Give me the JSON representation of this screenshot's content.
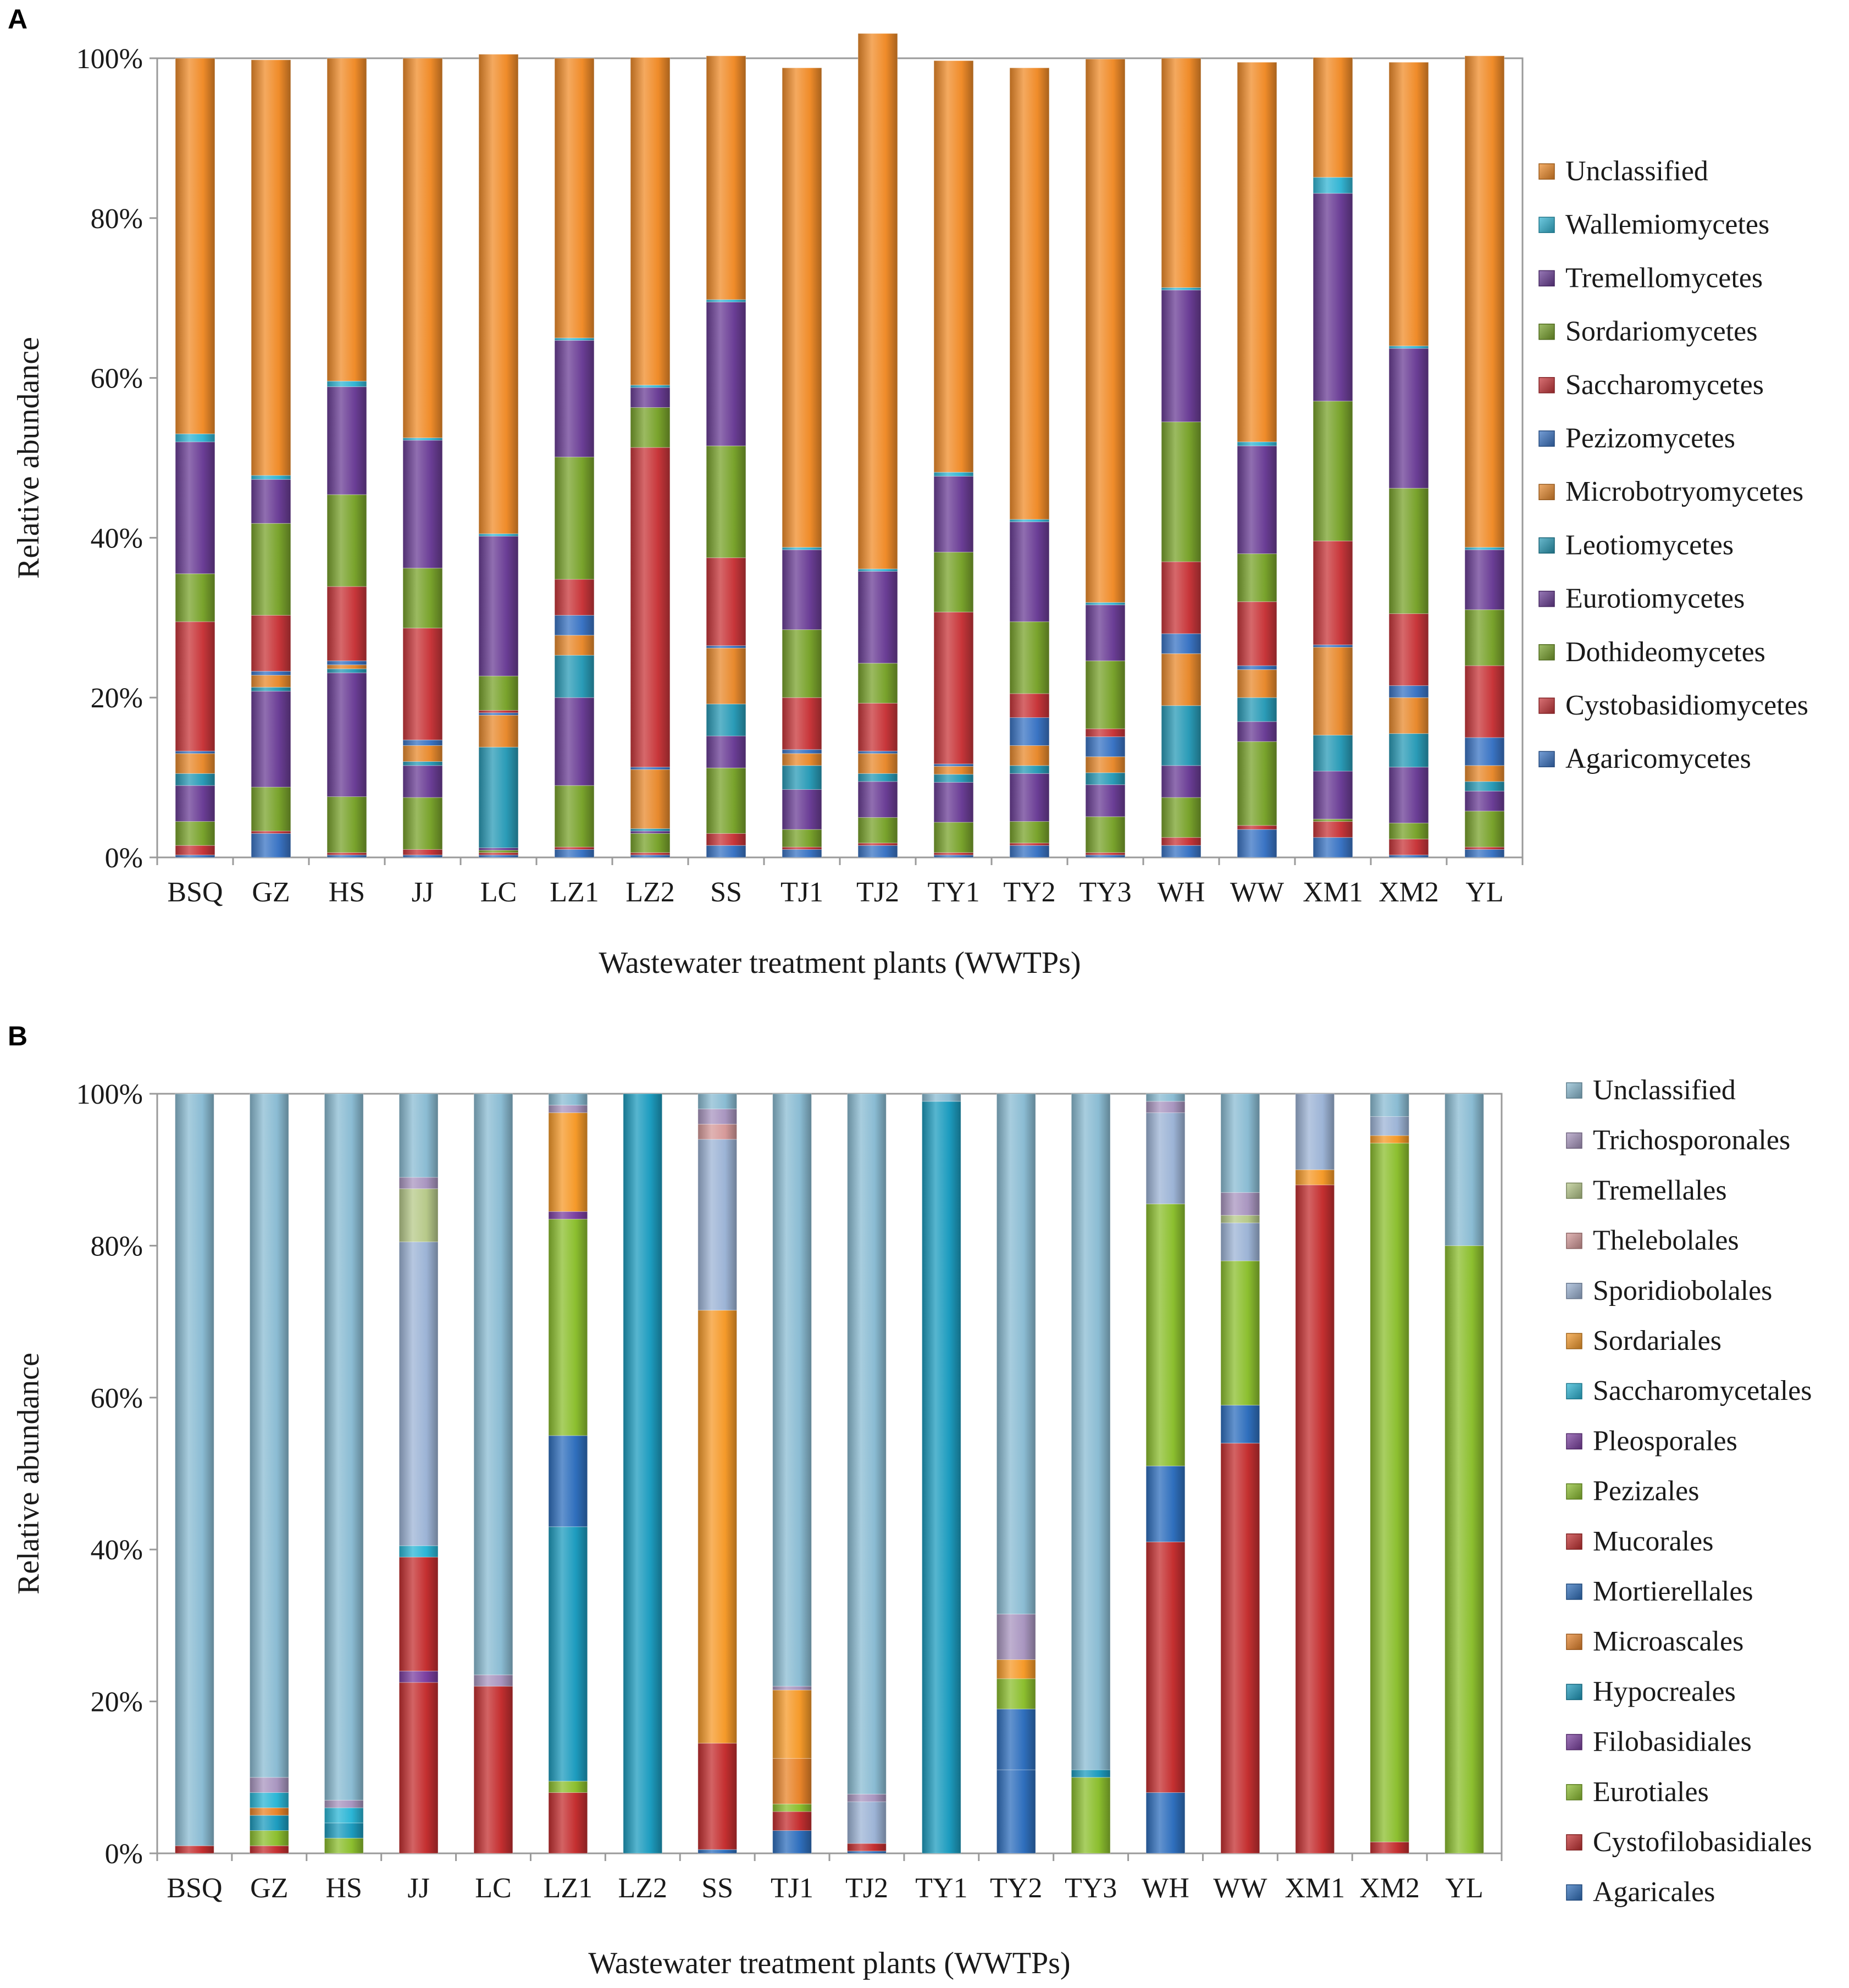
{
  "panel_letters": [
    "A",
    "B"
  ],
  "chart_data": [
    {
      "type": "bar",
      "stacked": true,
      "percent": true,
      "title": "",
      "xlabel": "Wastewater treatment plants (WWTPs)",
      "ylabel": "Relative abundance",
      "ylim": [
        0,
        100
      ],
      "yticks": [
        "0%",
        "20%",
        "40%",
        "60%",
        "80%",
        "100%"
      ],
      "categories": [
        "BSQ",
        "GZ",
        "HS",
        "JJ",
        "LC",
        "LZ1",
        "LZ2",
        "SS",
        "TJ1",
        "TJ2",
        "TY1",
        "TY2",
        "TY3",
        "WH",
        "WW",
        "XM1",
        "XM2",
        "YL"
      ],
      "series": [
        {
          "name": "Agaricomycetes",
          "color": "#3a74c4",
          "values": [
            0.3,
            3,
            0.3,
            0.3,
            0.3,
            1,
            0.3,
            1.5,
            1,
            1.5,
            0.3,
            1.5,
            0.3,
            1.5,
            3.5,
            2.5,
            0.3,
            1
          ]
        },
        {
          "name": "Cystobasidiomycetes",
          "color": "#c8363a",
          "values": [
            1.2,
            0.3,
            0.3,
            0.7,
            0.3,
            0.3,
            0.3,
            1.5,
            0.3,
            0.3,
            0.3,
            0.3,
            0.3,
            1,
            0.5,
            2,
            2,
            0.3
          ]
        },
        {
          "name": "Dothideomycetes",
          "color": "#79a32c",
          "values": [
            3,
            5.5,
            7,
            6.5,
            0.3,
            7.7,
            2.4,
            8.2,
            2.2,
            3.2,
            3.8,
            2.7,
            4.5,
            5,
            10.5,
            0.3,
            2,
            4.5
          ]
        },
        {
          "name": "Eurotiomycetes",
          "color": "#6b3e96",
          "values": [
            4.5,
            12,
            15.5,
            4,
            0.3,
            11,
            0.3,
            4,
            5,
            4.5,
            5,
            6,
            4,
            4,
            2.5,
            6,
            7,
            2.5
          ]
        },
        {
          "name": "Leotiomycetes",
          "color": "#2a9bb7",
          "values": [
            1.5,
            0.5,
            0.5,
            0.5,
            12.6,
            5.3,
            0.3,
            4,
            3,
            1,
            1,
            1,
            1.5,
            7.5,
            3,
            4.5,
            4.2,
            1.2
          ]
        },
        {
          "name": "Microbotryomycetes",
          "color": "#e88a2e",
          "values": [
            2.5,
            1.5,
            0.5,
            2,
            4,
            2.5,
            7.4,
            7,
            1.5,
            2.5,
            1,
            2.5,
            2,
            6.5,
            3.5,
            11,
            4.5,
            2
          ]
        },
        {
          "name": "Pezizomycetes",
          "color": "#3a74c4",
          "values": [
            0.3,
            0.5,
            0.5,
            0.7,
            0.3,
            2.5,
            0.3,
            0.3,
            0.5,
            0.3,
            0.3,
            3.5,
            2.5,
            2.5,
            0.5,
            0.3,
            1.5,
            3.5
          ]
        },
        {
          "name": "Saccharomycetes",
          "color": "#c8363a",
          "values": [
            16.2,
            7,
            9.3,
            14,
            0.3,
            4.5,
            40,
            11,
            6.5,
            6,
            19,
            3,
            1,
            9,
            8,
            13,
            9,
            9
          ]
        },
        {
          "name": "Sordariomycetes",
          "color": "#79a32c",
          "values": [
            6,
            11.5,
            11.5,
            7.5,
            4.3,
            15.3,
            5,
            14,
            8.5,
            5,
            7.5,
            9,
            8.5,
            17.5,
            6,
            17.5,
            15.7,
            7
          ]
        },
        {
          "name": "Tremellomycetes",
          "color": "#6b3e96",
          "values": [
            16.5,
            5.5,
            13.5,
            16,
            17.5,
            14.6,
            2.5,
            18,
            10,
            11.5,
            9.5,
            12.5,
            7,
            16.5,
            13.5,
            26,
            17.5,
            7.5
          ]
        },
        {
          "name": "Wallemiomycetes",
          "color": "#33b5d4",
          "values": [
            1,
            0.5,
            0.7,
            0.3,
            0.3,
            0.3,
            0.3,
            0.3,
            0.3,
            0.3,
            0.5,
            0.3,
            0.3,
            0.3,
            0.5,
            2,
            0.3,
            0.3
          ]
        },
        {
          "name": "Unclassified",
          "color": "#f08c2a",
          "values": [
            47,
            52,
            40.4,
            47.5,
            60,
            35,
            41,
            30.5,
            60,
            67,
            51.5,
            56.5,
            68,
            28.7,
            47.5,
            15,
            35.5,
            61.5
          ]
        }
      ]
    },
    {
      "type": "bar",
      "stacked": true,
      "percent": true,
      "title": "",
      "xlabel": "Wastewater treatment plants (WWTPs)",
      "ylabel": "Relative abundance",
      "ylim": [
        0,
        100
      ],
      "yticks": [
        "0%",
        "20%",
        "40%",
        "60%",
        "80%",
        "100%"
      ],
      "categories": [
        "BSQ",
        "GZ",
        "HS",
        "JJ",
        "LC",
        "LZ1",
        "LZ2",
        "SS",
        "TJ1",
        "TJ2",
        "TY1",
        "TY2",
        "TY3",
        "WH",
        "WW",
        "XM1",
        "XM2",
        "YL"
      ],
      "series": [
        {
          "name": "Agaricales",
          "color": "#2f6fbd",
          "values": [
            0,
            0,
            0,
            0,
            0,
            0,
            0,
            0.5,
            3,
            0.3,
            0,
            11,
            0,
            8,
            0,
            0,
            0,
            0
          ]
        },
        {
          "name": "Cystofilobasidiales",
          "color": "#c42f30",
          "values": [
            1,
            1,
            0,
            22.5,
            22,
            8,
            0,
            14,
            2.5,
            1,
            0,
            0,
            0,
            33,
            54,
            88,
            1.5,
            0
          ]
        },
        {
          "name": "Eurotiales",
          "color": "#8cbf2f",
          "values": [
            0,
            2,
            2,
            0,
            0,
            1.5,
            0,
            0,
            1,
            0,
            0,
            0,
            10,
            0,
            0,
            0,
            92,
            80
          ]
        },
        {
          "name": "Filobasidiales",
          "color": "#7b3fa0",
          "values": [
            0,
            0,
            0,
            1.5,
            0,
            0,
            0,
            0,
            0,
            0,
            0,
            0,
            0,
            0,
            0,
            0,
            0,
            0
          ]
        },
        {
          "name": "Hypocreales",
          "color": "#1d9cbf",
          "values": [
            0,
            2,
            2,
            0,
            0,
            33.5,
            100,
            0,
            0,
            0,
            99,
            0,
            1,
            0,
            0,
            0,
            0,
            0
          ]
        },
        {
          "name": "Microascales",
          "color": "#e8842a",
          "values": [
            0,
            1,
            0,
            0,
            0,
            0,
            0,
            0,
            6,
            0,
            0,
            0,
            0,
            0,
            0,
            0,
            0,
            0
          ]
        },
        {
          "name": "Mortierellales",
          "color": "#2f6fbd",
          "values": [
            0,
            0,
            0,
            0,
            0,
            12,
            0,
            0,
            0,
            0,
            0,
            8,
            0,
            10,
            5,
            0,
            0,
            0
          ]
        },
        {
          "name": "Mucorales",
          "color": "#c42f30",
          "values": [
            0,
            0,
            0,
            15,
            0,
            0,
            0,
            0,
            0,
            0,
            0,
            0,
            0,
            0,
            0,
            0,
            0,
            0
          ]
        },
        {
          "name": "Pezizales",
          "color": "#8cbf2f",
          "values": [
            0,
            0,
            0,
            0,
            0,
            28.5,
            0,
            0,
            0,
            0,
            0,
            4,
            0,
            34.5,
            19,
            0,
            0,
            0
          ]
        },
        {
          "name": "Pleosporales",
          "color": "#7b3fa0",
          "values": [
            0,
            0,
            0,
            0,
            0,
            1,
            0,
            0,
            0,
            0,
            0,
            0,
            0,
            0,
            0,
            0,
            0,
            0
          ]
        },
        {
          "name": "Saccharomycetales",
          "color": "#2bb6d6",
          "values": [
            0,
            2,
            2,
            1.5,
            0,
            0,
            0,
            0,
            0,
            0,
            0,
            0,
            0,
            0,
            0,
            0,
            0,
            0
          ]
        },
        {
          "name": "Sordariales",
          "color": "#f59a2a",
          "values": [
            0,
            0,
            0,
            0,
            0,
            13,
            0,
            57,
            9,
            0,
            0,
            2.5,
            0,
            0,
            0,
            2,
            1,
            0
          ]
        },
        {
          "name": "Sporidiobolales",
          "color": "#9db4d6",
          "values": [
            0,
            0,
            0,
            40,
            0,
            0,
            0,
            22.5,
            0,
            5.5,
            0,
            0,
            0,
            12,
            5,
            10,
            2.5,
            0
          ]
        },
        {
          "name": "Thelebolales",
          "color": "#d69a9a",
          "values": [
            0,
            0,
            0,
            0,
            0,
            0,
            0,
            2,
            0,
            0,
            0,
            0,
            0,
            0,
            0,
            0,
            0,
            0
          ]
        },
        {
          "name": "Tremellales",
          "color": "#b7c98a",
          "values": [
            0,
            0,
            0,
            7,
            0,
            0,
            0,
            0,
            0,
            0,
            0,
            0,
            0,
            0,
            1,
            0,
            0,
            0
          ]
        },
        {
          "name": "Trichosporonales",
          "color": "#a996c0",
          "values": [
            0,
            2,
            1,
            1.5,
            1.5,
            1,
            0,
            2,
            0.5,
            1,
            0,
            6,
            0,
            1.5,
            3,
            0,
            0,
            0
          ]
        },
        {
          "name": "Unclassified",
          "color": "#8bbcd3",
          "values": [
            99,
            90,
            93,
            11,
            76.5,
            1.5,
            0,
            2,
            78,
            92.2,
            1,
            68.5,
            89,
            1,
            13,
            0,
            3,
            20
          ]
        }
      ]
    }
  ]
}
